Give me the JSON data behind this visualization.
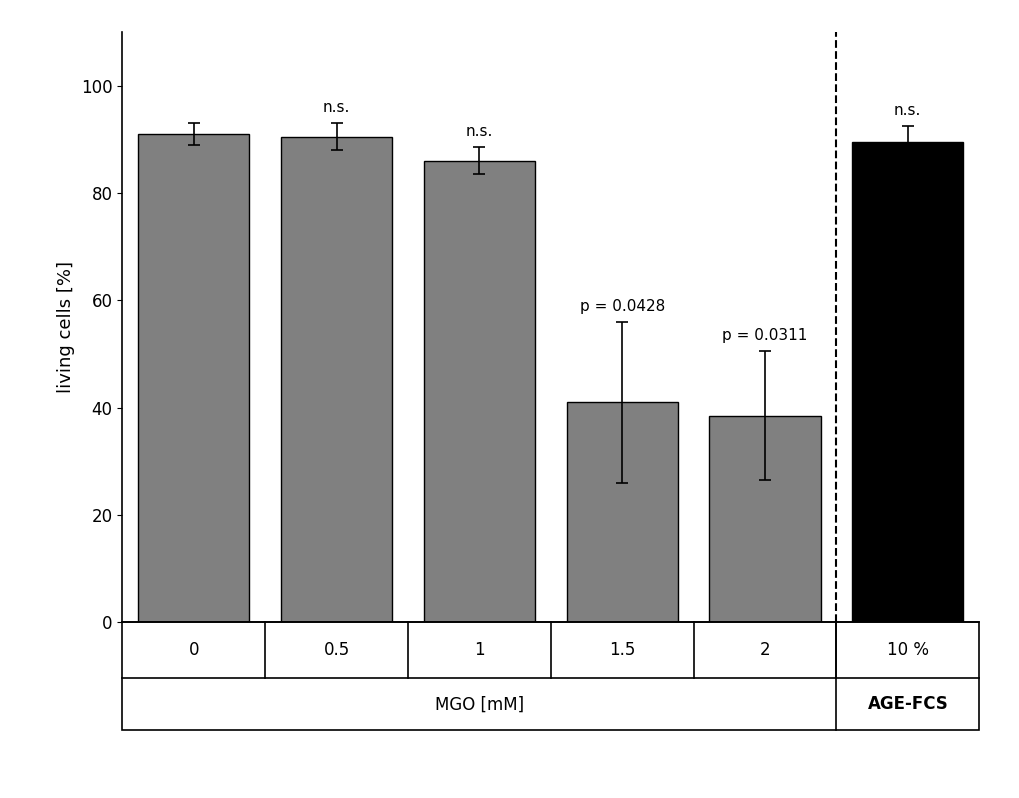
{
  "categories": [
    "0",
    "0.5",
    "1",
    "1.5",
    "2",
    "10 %"
  ],
  "values": [
    91.0,
    90.5,
    86.0,
    41.0,
    38.5,
    89.5
  ],
  "errors": [
    2.0,
    2.5,
    2.5,
    15.0,
    12.0,
    3.0
  ],
  "bar_colors": [
    "#808080",
    "#808080",
    "#808080",
    "#808080",
    "#808080",
    "#000000"
  ],
  "annotations": [
    "",
    "n.s.",
    "n.s.",
    "p = 0.0428",
    "p = 0.0311",
    "n.s."
  ],
  "ylabel": "living cells [%]",
  "ylim": [
    0,
    110
  ],
  "yticks": [
    0,
    20,
    40,
    60,
    80,
    100
  ],
  "xlabel_mgo": "MGO [mM]",
  "xlabel_age": "AGE-FCS",
  "bar_width": 0.78,
  "annotation_fontsize": 11,
  "axis_label_fontsize": 13,
  "tick_fontsize": 12,
  "group_label_fontsize": 12
}
